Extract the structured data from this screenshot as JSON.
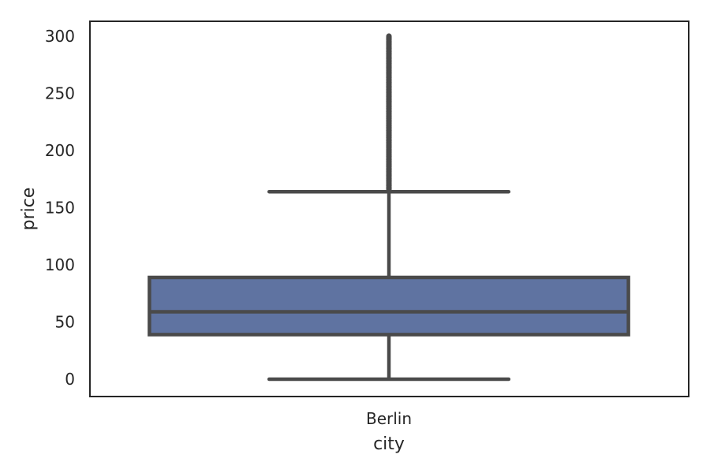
{
  "chart_data": {
    "type": "box",
    "categories": [
      "Berlin"
    ],
    "boxes": [
      {
        "category": "Berlin",
        "whisker_low": 0,
        "q1": 39,
        "median": 59,
        "q3": 89,
        "whisker_high": 164,
        "outliers_range": [
          165,
          300
        ]
      }
    ],
    "xlabel": "city",
    "ylabel": "price",
    "ylim": [
      -14,
      313
    ],
    "yticks": [
      0,
      50,
      100,
      150,
      200,
      250,
      300
    ],
    "grid": false,
    "box_color": "#5f73a1",
    "line_color": "#4a4a4a"
  }
}
